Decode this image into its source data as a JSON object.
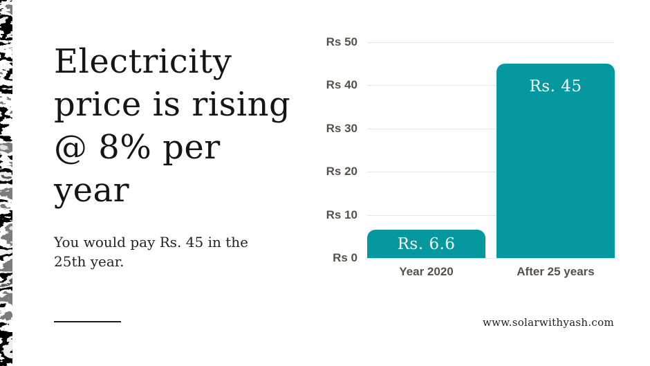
{
  "slide": {
    "heading_lines": [
      "Electricity",
      "price is rising",
      "@ 8% per",
      "year"
    ],
    "subtext_lines": [
      "You would pay Rs. 45 in the",
      "25th year."
    ],
    "footer": "www.solarwithyash.com"
  },
  "colors": {
    "bar": "#05989e",
    "bar_label": "#ffffff",
    "axis_text": "#56504a",
    "gridline": "#e8e6e3",
    "heading_text": "#151515",
    "background": "#ffffff"
  },
  "chart_data": {
    "type": "bar",
    "title": "",
    "xlabel": "",
    "ylabel": "",
    "categories": [
      "Year 2020",
      "After 25 years"
    ],
    "values": [
      6.6,
      45
    ],
    "bar_labels": [
      "Rs. 6.6",
      "Rs. 45"
    ],
    "y_ticks": [
      {
        "value": 0,
        "label": "Rs 0"
      },
      {
        "value": 10,
        "label": "Rs 10"
      },
      {
        "value": 20,
        "label": "Rs 20"
      },
      {
        "value": 30,
        "label": "Rs 30"
      },
      {
        "value": 40,
        "label": "Rs 40"
      },
      {
        "value": 50,
        "label": "Rs 50"
      }
    ],
    "ylim": [
      0,
      50
    ],
    "grid": true,
    "legend": false
  }
}
